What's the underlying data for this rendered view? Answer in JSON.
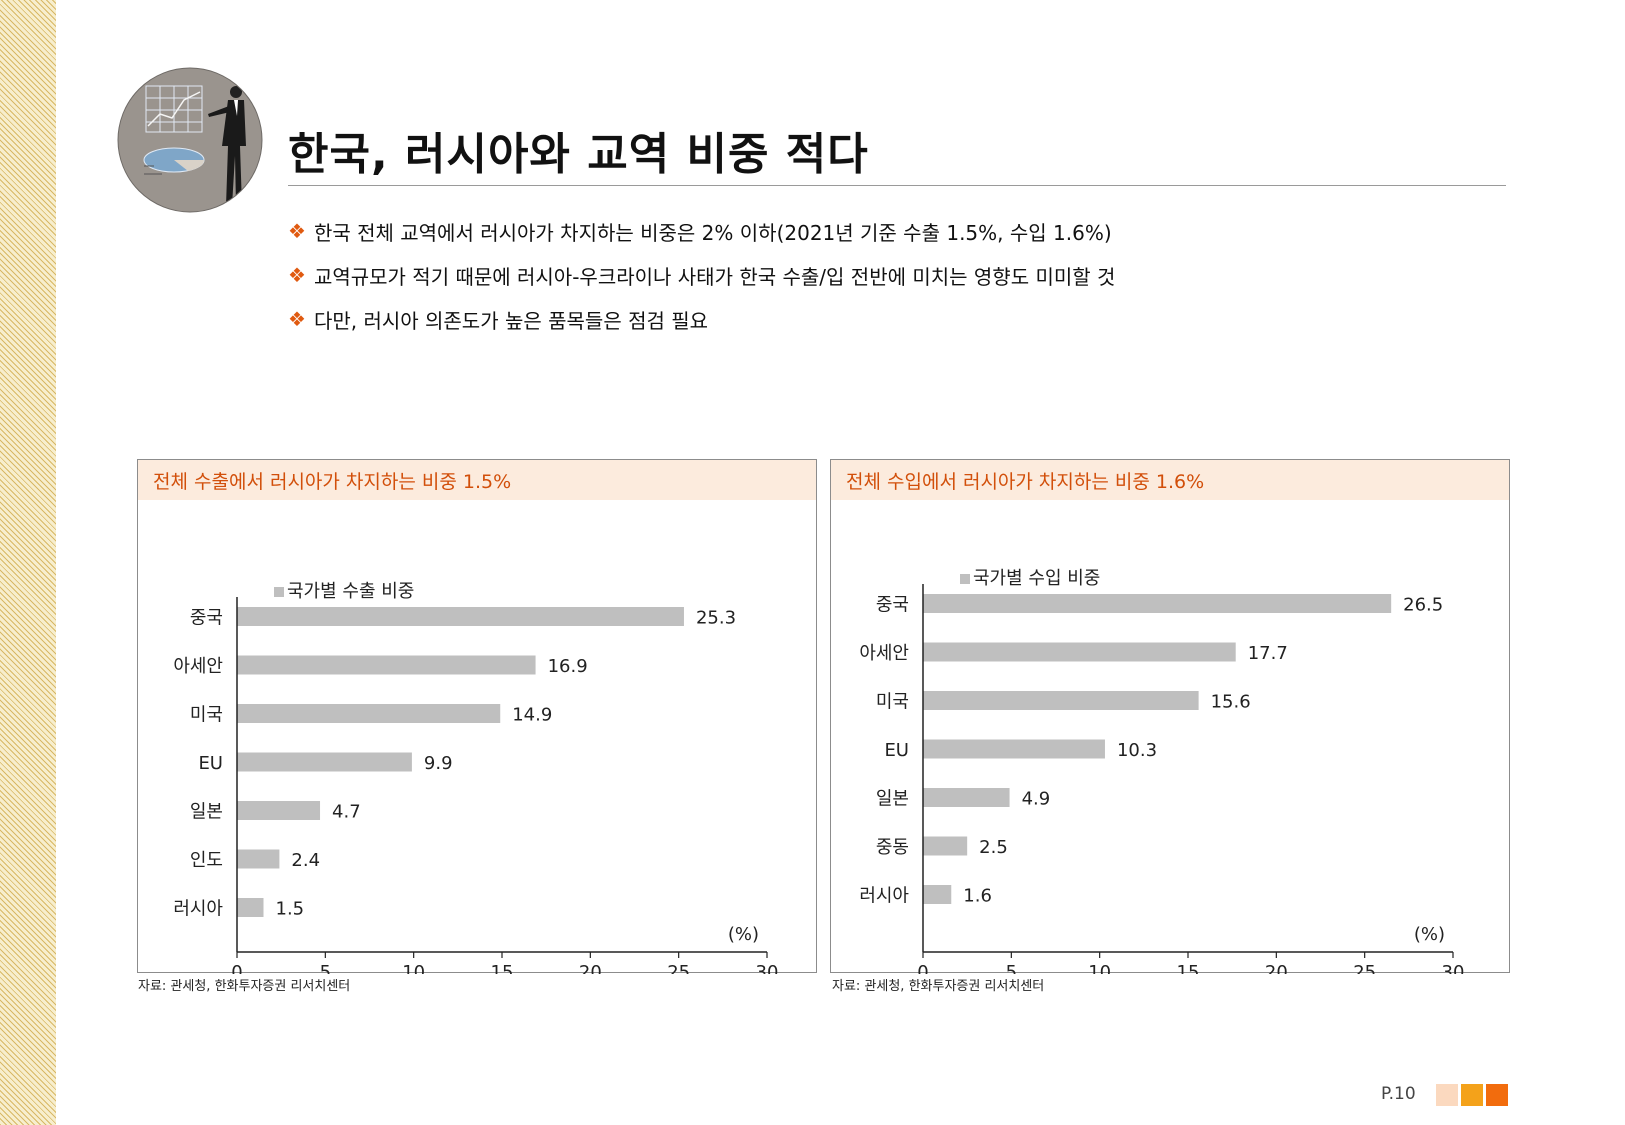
{
  "title": "한국, 러시아와 교역 비중 적다",
  "bullet_icon": "diamond-ornament-icon",
  "bullets": [
    "한국 전체 교역에서 러시아가 차지하는 비중은 2% 이하(2021년 기준 수출 1.5%, 수입 1.6%)",
    "교역규모가 적기 때문에 러시아-우크라이나 사태가 한국 수출/입 전반에 미치는 영향도 미미할 것",
    "다만, 러시아 의존도가 높은 품목들은 점검 필요"
  ],
  "colors": {
    "accent": "#d24f0a",
    "panel_header_bg": "#fcebdd",
    "bar": "#bfbfbf"
  },
  "panels": [
    {
      "header": "전체 수출에서 러시아가 차지하는 비중 1.5%",
      "source": "자료: 관세청, 한화투자증권 리서치센터"
    },
    {
      "header": "전체 수입에서 러시아가 차지하는 비중 1.6%",
      "source": "자료: 관세청, 한화투자증권 리서치센터"
    }
  ],
  "chart_data": [
    {
      "type": "bar",
      "orientation": "horizontal",
      "legend": "국가별 수출 비중",
      "categories": [
        "중국",
        "아세안",
        "미국",
        "EU",
        "일본",
        "인도",
        "러시아"
      ],
      "values": [
        25.3,
        16.9,
        14.9,
        9.9,
        4.7,
        2.4,
        1.5
      ],
      "value_labels": [
        "25.3",
        "16.9",
        "14.9",
        "9.9",
        "4.7",
        "2.4",
        "1.5"
      ],
      "xlim": [
        0,
        30
      ],
      "xticks": [
        "0",
        "5",
        "10",
        "15",
        "20",
        "25",
        "30"
      ],
      "unit_label": "(%)"
    },
    {
      "type": "bar",
      "orientation": "horizontal",
      "legend": "국가별 수입 비중",
      "categories": [
        "중국",
        "아세안",
        "미국",
        "EU",
        "일본",
        "중동",
        "러시아"
      ],
      "values": [
        26.5,
        17.7,
        15.6,
        10.3,
        4.9,
        2.5,
        1.6
      ],
      "value_labels": [
        "26.5",
        "17.7",
        "15.6",
        "10.3",
        "4.9",
        "2.5",
        "1.6"
      ],
      "xlim": [
        0,
        30
      ],
      "xticks": [
        "0",
        "5",
        "10",
        "15",
        "20",
        "25",
        "30"
      ],
      "unit_label": "(%)"
    }
  ],
  "page_number": "P.10",
  "page_indicator_colors": [
    "#fbd9bf",
    "#f4a21a",
    "#f26c0d"
  ]
}
